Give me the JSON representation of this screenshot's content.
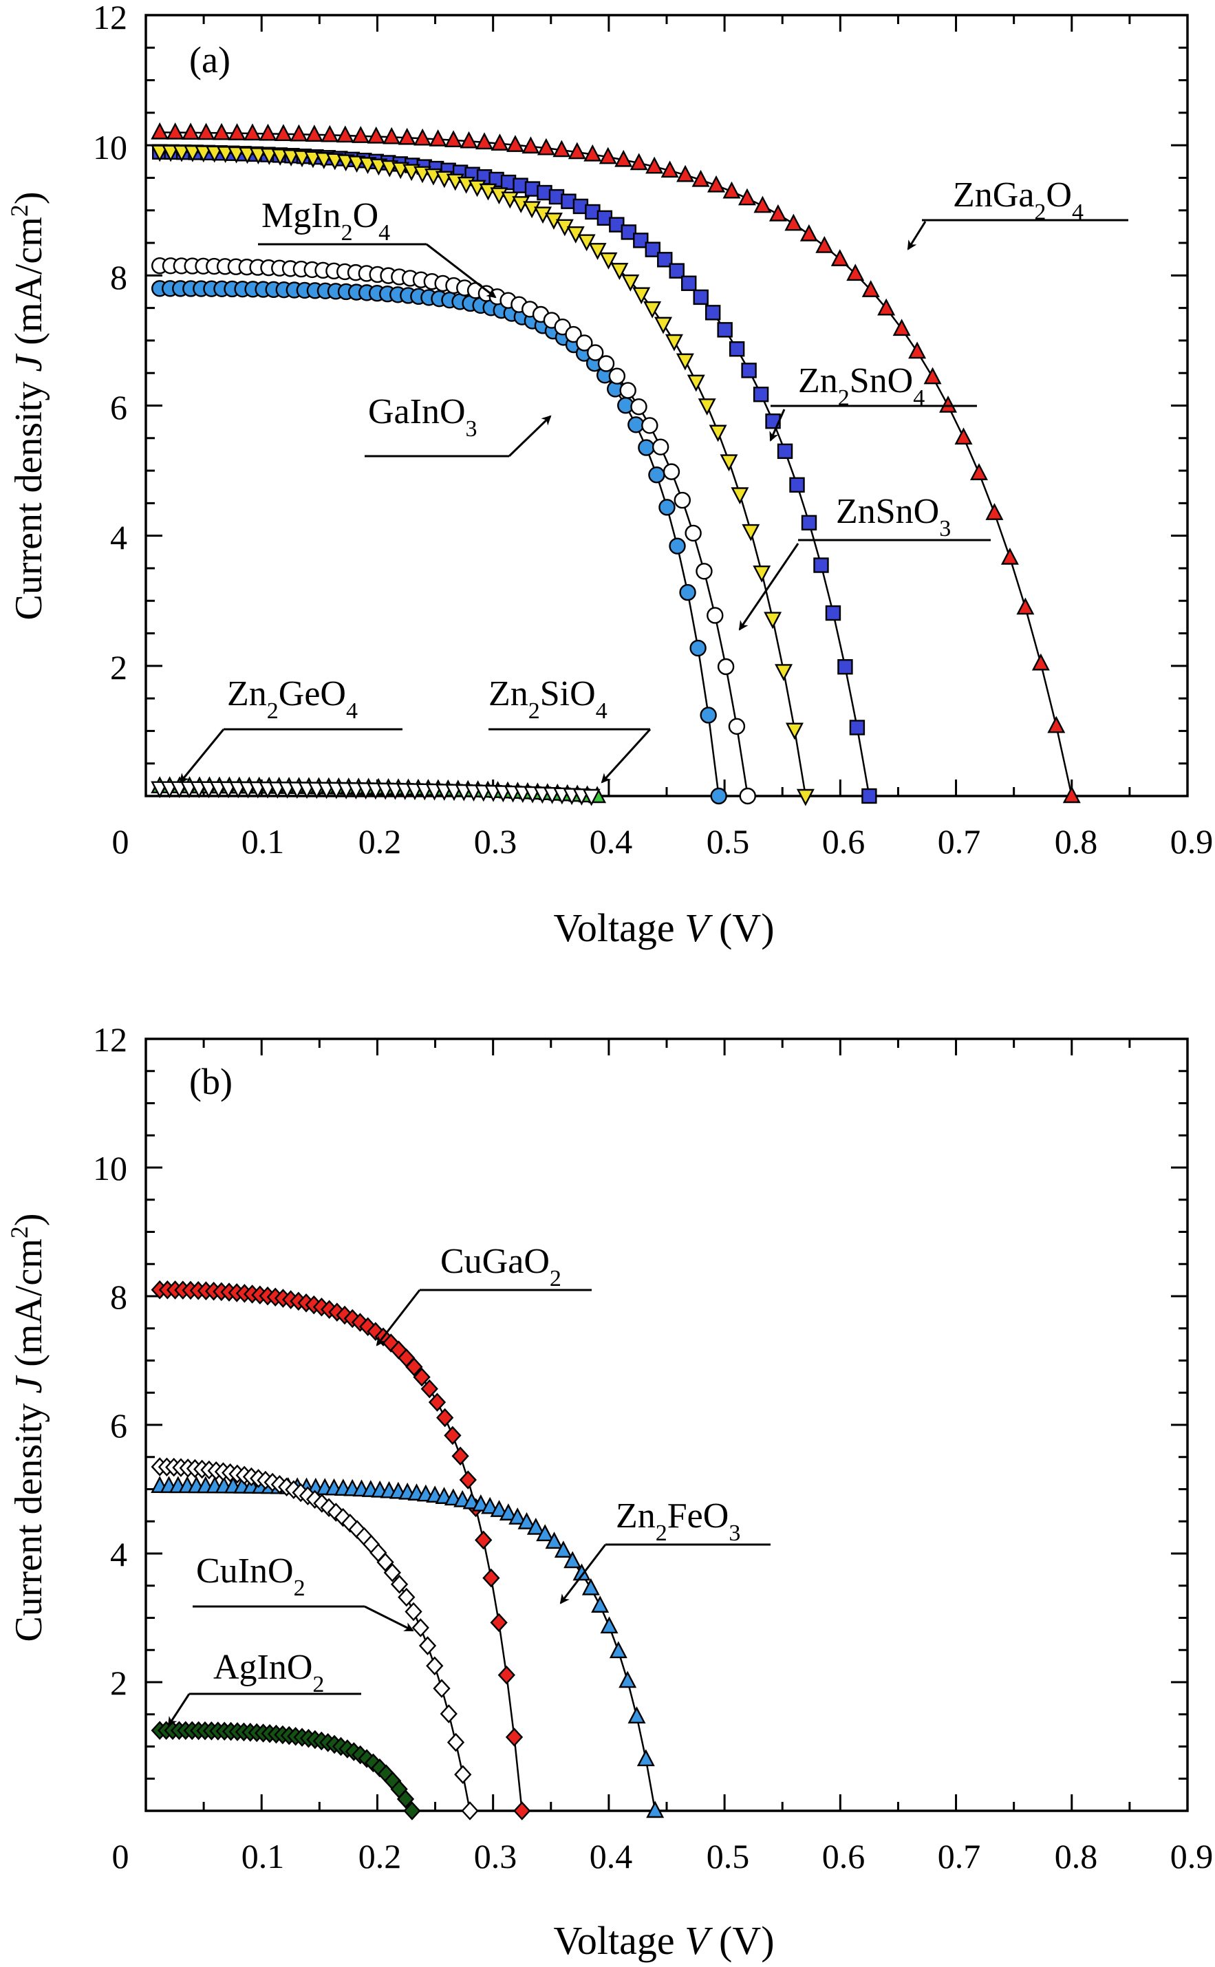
{
  "figure": {
    "panels": [
      {
        "id": "a",
        "panel_label": "(a)"
      },
      {
        "id": "b",
        "panel_label": "(b)"
      }
    ]
  },
  "chart_data": [
    {
      "type": "scatter",
      "panel_label": "(a)",
      "xlabel": "Voltage V (V)",
      "ylabel": "Current density J (mA/cm²)",
      "xlim": [
        0,
        0.9
      ],
      "ylim": [
        0,
        12
      ],
      "x_ticks": [
        "0",
        "0.1",
        "0.2",
        "0.3",
        "0.4",
        "0.5",
        "0.6",
        "0.7",
        "0.8",
        "0.9"
      ],
      "y_ticks": [
        "2",
        "4",
        "6",
        "8",
        "10",
        "12"
      ],
      "grid": false,
      "series": [
        {
          "name": "ZnGa2O4",
          "label_main": "ZnGa",
          "label_sub1": "2",
          "label_mid": "O",
          "label_sub2": "4",
          "marker": "triangle-up",
          "color": "#e8231e",
          "Jsc": 10.2,
          "Voc": 0.8,
          "n": 0.9,
          "p": 6.0,
          "count": 60
        },
        {
          "name": "Zn2SnO4",
          "label_main": "Zn",
          "label_sub1": "2",
          "label_mid": "SnO",
          "label_sub2": "4",
          "marker": "square",
          "color": "#3b46d6",
          "Jsc": 9.9,
          "Voc": 0.625,
          "n": 0.6,
          "p": 4.0,
          "count": 60
        },
        {
          "name": "ZnSnO3",
          "label_main": "ZnSnO",
          "label_sub1": "",
          "label_mid": "",
          "label_sub2": "3",
          "marker": "triangle-down",
          "color": "#f2e22a",
          "Jsc": 9.9,
          "Voc": 0.57,
          "n": 0.48,
          "p": 3.0,
          "count": 60
        },
        {
          "name": "MgIn2O4",
          "label_main": "MgIn",
          "label_sub1": "2",
          "label_mid": "O",
          "label_sub2": "4",
          "marker": "circle",
          "color": "#3a96e2",
          "Jsc": 7.8,
          "Voc": 0.495,
          "n": 0.52,
          "p": 5.0,
          "count": 55
        },
        {
          "name": "GaInO3",
          "label_main": "GaInO",
          "label_sub1": "",
          "label_mid": "",
          "label_sub2": "3",
          "marker": "circle-open",
          "color": "#ffffff",
          "Jsc": 8.15,
          "Voc": 0.52,
          "n": 0.52,
          "p": 4.0,
          "count": 55
        },
        {
          "name": "Zn2GeO4",
          "label_main": "Zn",
          "label_sub1": "2",
          "label_mid": "GeO",
          "label_sub2": "4",
          "marker": "triangle-up",
          "color": "#3cc83c",
          "Jsc": 0.15,
          "Voc": 0.39,
          "n": 0.5,
          "p": 1.0,
          "count": 45
        },
        {
          "name": "Zn2SiO4",
          "label_main": "Zn",
          "label_sub1": "2",
          "label_mid": "SiO",
          "label_sub2": "4",
          "marker": "triangle-down-open",
          "color": "#ffffff",
          "Jsc": 0.12,
          "Voc": 0.385,
          "n": 0.5,
          "p": 1.0,
          "count": 45
        }
      ]
    },
    {
      "type": "scatter",
      "panel_label": "(b)",
      "xlabel": "Voltage V (V)",
      "ylabel": "Current density J (mA/cm²)",
      "xlim": [
        0,
        0.9
      ],
      "ylim": [
        0,
        12
      ],
      "x_ticks": [
        "0",
        "0.1",
        "0.2",
        "0.3",
        "0.4",
        "0.5",
        "0.6",
        "0.7",
        "0.8",
        "0.9"
      ],
      "y_ticks": [
        "2",
        "4",
        "6",
        "8",
        "10",
        "12"
      ],
      "grid": false,
      "series": [
        {
          "name": "CuGaO2",
          "label_main": "CuGaO",
          "label_sub1": "",
          "label_mid": "",
          "label_sub2": "2",
          "marker": "diamond",
          "color": "#e8231e",
          "Jsc": 8.1,
          "Voc": 0.325,
          "n": 0.42,
          "p": 3.0,
          "count": 48
        },
        {
          "name": "Zn2FeO3",
          "label_main": "Zn",
          "label_sub1": "2",
          "label_mid": "FeO",
          "label_sub2": "3",
          "marker": "triangle-up",
          "color": "#3a96e2",
          "Jsc": 5.05,
          "Voc": 0.44,
          "n": 0.52,
          "p": 5.0,
          "count": 55
        },
        {
          "name": "CuInO2",
          "label_main": "CuInO",
          "label_sub1": "",
          "label_mid": "",
          "label_sub2": "2",
          "marker": "diamond-open",
          "color": "#ffffff",
          "Jsc": 5.35,
          "Voc": 0.28,
          "n": 0.48,
          "p": 2.2,
          "count": 45
        },
        {
          "name": "AgInO2",
          "label_main": "AgInO",
          "label_sub1": "",
          "label_mid": "",
          "label_sub2": "2",
          "marker": "diamond",
          "color": "#145214",
          "Jsc": 1.25,
          "Voc": 0.23,
          "n": 0.35,
          "p": 2.0,
          "count": 40
        }
      ]
    }
  ]
}
